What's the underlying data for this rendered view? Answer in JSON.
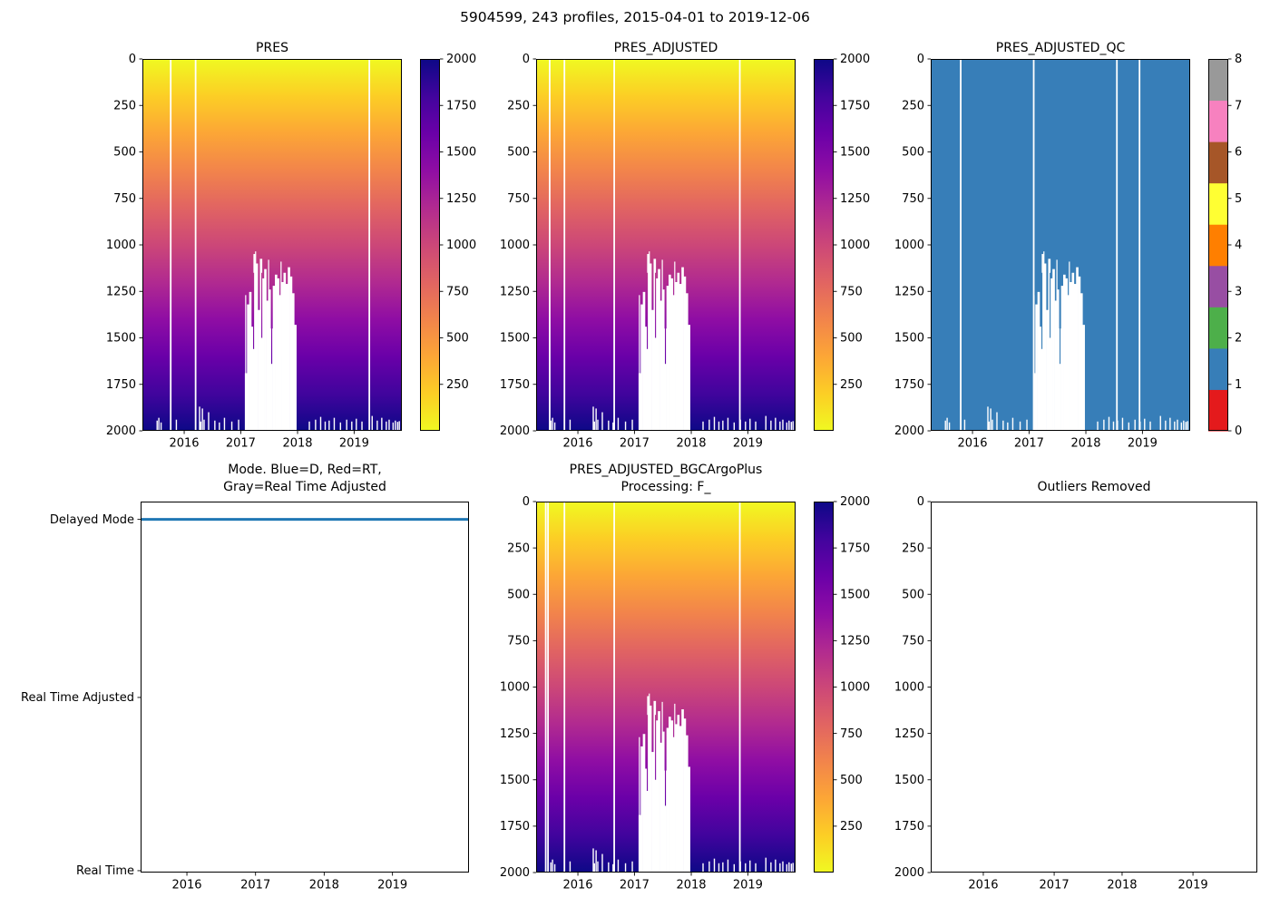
{
  "suptitle": "5904599, 243 profiles, 2015-04-01 to 2019-12-06",
  "header": {
    "float_id": "5904599",
    "profile_count": "243",
    "date_range_start": "2015-04-01",
    "date_range_end": "2019-12-06"
  },
  "colors": {
    "background": "#ffffff",
    "axis": "#000000",
    "missing": "#ffffff",
    "qc_fill": "#377eb8",
    "mode_line": "#1f77b4",
    "plasma_top_to_bottom": [
      "#f0f921",
      "#fcce25",
      "#fca636",
      "#f2844b",
      "#e16462",
      "#cc4778",
      "#b12a90",
      "#8f0da4",
      "#6a00a8",
      "#41049d",
      "#0d0887"
    ],
    "set1_qc_0_to_8": [
      "#e41a1c",
      "#377eb8",
      "#4daf4a",
      "#984ea3",
      "#ff7f00",
      "#ffff33",
      "#a65628",
      "#f781bf",
      "#999999"
    ]
  },
  "time_axis": {
    "start_year": 2015.27,
    "end_year": 2019.855,
    "tick_values": [
      2016,
      2017,
      2018,
      2019
    ],
    "tick_labels": [
      "2016",
      "2017",
      "2018",
      "2019"
    ]
  },
  "depth_axis": {
    "min": 0,
    "max": 2000,
    "inverted": true,
    "tick_labels": [
      "0",
      "250",
      "500",
      "750",
      "1000",
      "1250",
      "1500",
      "1750",
      "2000"
    ]
  },
  "pressure_colorbar": {
    "vmin": 0,
    "vmax": 2000,
    "tick_values": [
      2000,
      1750,
      1500,
      1250,
      1000,
      750,
      500,
      250
    ],
    "tick_labels": [
      "2000",
      "1750",
      "1500",
      "1250",
      "1000",
      "750",
      "500",
      "250"
    ]
  },
  "qc_colorbar": {
    "range": [
      0,
      8
    ],
    "n_colors": 9,
    "tick_values": [
      8,
      7,
      6,
      5,
      4,
      3,
      2,
      1,
      0
    ],
    "tick_labels": [
      "8",
      "7",
      "6",
      "5",
      "4",
      "3",
      "2",
      "1",
      "0"
    ]
  },
  "missing_pattern": {
    "note": "white = missing data; deep block of missing values between 2017.08 and 2018.0 below ~1050-1700 dbar; scattered shallow notches near bottom",
    "deep_block": {
      "x_start": 2017.08,
      "x_end": 2017.99,
      "column_top_depths": [
        1690,
        1320,
        1253,
        1440,
        1049,
        1100,
        1350,
        1075,
        1180,
        1130,
        1300,
        1240,
        1450,
        1220,
        1160,
        1180,
        1270,
        1200,
        1150,
        1210,
        1120,
        1170,
        1260,
        1430
      ]
    },
    "spikes": [
      [
        2017.095,
        1270
      ],
      [
        2017.27,
        1035
      ],
      [
        2017.5,
        1080
      ],
      [
        2017.72,
        1090
      ],
      [
        2017.93,
        1390
      ]
    ],
    "slits": [
      [
        2017.235,
        1560
      ],
      [
        2017.38,
        1500
      ],
      [
        2017.555,
        1640
      ]
    ],
    "bottom_marks": [
      [
        2015.53,
        1945
      ],
      [
        2015.56,
        1930
      ],
      [
        2015.6,
        1955
      ],
      [
        2015.87,
        1940
      ],
      [
        2016.28,
        1870
      ],
      [
        2016.3,
        1950
      ],
      [
        2016.33,
        1880
      ],
      [
        2016.36,
        1940
      ],
      [
        2016.44,
        1900
      ],
      [
        2016.55,
        1945
      ],
      [
        2016.63,
        1955
      ],
      [
        2016.72,
        1930
      ],
      [
        2016.85,
        1950
      ],
      [
        2016.97,
        1940
      ],
      [
        2018.22,
        1950
      ],
      [
        2018.33,
        1940
      ],
      [
        2018.42,
        1925
      ],
      [
        2018.5,
        1950
      ],
      [
        2018.57,
        1945
      ],
      [
        2018.66,
        1930
      ],
      [
        2018.77,
        1955
      ],
      [
        2018.88,
        1940
      ],
      [
        2018.97,
        1950
      ],
      [
        2019.05,
        1935
      ],
      [
        2019.15,
        1950
      ],
      [
        2019.33,
        1920
      ],
      [
        2019.42,
        1945
      ],
      [
        2019.5,
        1930
      ],
      [
        2019.58,
        1950
      ],
      [
        2019.63,
        1940
      ],
      [
        2019.7,
        1955
      ],
      [
        2019.74,
        1945
      ],
      [
        2019.78,
        1952
      ],
      [
        2019.81,
        1948
      ]
    ]
  },
  "chart_data": [
    {
      "type": "heatmap",
      "title": "PRES",
      "colormap": "plasma_reversed",
      "cell_value": "pressure (dbar), equal to depth-axis value, 0 at surface to 2000 at bottom",
      "x_range": [
        2015.27,
        2019.855
      ],
      "y_range": [
        0,
        2000
      ],
      "y_inverted": true,
      "x_ticks": [
        2016,
        2017,
        2018,
        2019
      ],
      "y_ticks": [
        0,
        250,
        500,
        750,
        1000,
        1250,
        1500,
        1750,
        2000
      ],
      "colorbar_ticks": [
        2000,
        1750,
        1500,
        1250,
        1000,
        750,
        500,
        250
      ],
      "gap_years": [
        2015.77,
        2016.21,
        2019.28
      ],
      "uses_missing_pattern": true
    },
    {
      "type": "heatmap",
      "title": "PRES_ADJUSTED",
      "colormap": "plasma_reversed",
      "cell_value": "adjusted pressure (dbar), equal to depth-axis value",
      "x_range": [
        2015.27,
        2019.855
      ],
      "y_range": [
        0,
        2000
      ],
      "y_inverted": true,
      "x_ticks": [
        2016,
        2017,
        2018,
        2019
      ],
      "y_ticks": [
        0,
        250,
        500,
        750,
        1000,
        1250,
        1500,
        1750,
        2000
      ],
      "colorbar_ticks": [
        2000,
        1750,
        1500,
        1250,
        1000,
        750,
        500,
        250
      ],
      "gap_years": [
        2015.51,
        2015.77,
        2016.65,
        2018.87
      ],
      "uses_missing_pattern": true
    },
    {
      "type": "heatmap",
      "title": "PRES_ADJUSTED_QC",
      "colormap": "Set1 discrete 0-8",
      "cell_value": "QC flag = 1 (good data) everywhere data exists",
      "constant_value": 1,
      "fill_color": "#377eb8",
      "x_range": [
        2015.27,
        2019.855
      ],
      "y_range": [
        0,
        2000
      ],
      "y_inverted": true,
      "x_ticks": [
        2016,
        2017,
        2018,
        2019
      ],
      "y_ticks": [
        0,
        250,
        500,
        750,
        1000,
        1250,
        1500,
        1750,
        2000
      ],
      "colorbar_ticks": [
        8,
        7,
        6,
        5,
        4,
        3,
        2,
        1,
        0
      ],
      "gap_years": [
        2015.8,
        2017.09,
        2018.56,
        2018.96
      ],
      "uses_missing_pattern": true
    },
    {
      "type": "line",
      "title_lines": [
        "Mode. Blue=D, Red=RT,",
        "Gray=Real Time Adjusted"
      ],
      "y_categories_bottom_to_top": [
        "Real Time",
        "Real Time Adjusted",
        "Delayed Mode"
      ],
      "y_tick_labels_top_to_bottom": [
        "Delayed Mode",
        "Real Time Adjusted",
        "Real Time"
      ],
      "series": [
        {
          "name": "processing mode",
          "constant_value": "Delayed Mode",
          "x_start": 2015.3,
          "x_end": 2019.93,
          "color": "#1f77b4"
        }
      ],
      "x_ticks": [
        2016,
        2017,
        2018,
        2019
      ]
    },
    {
      "type": "heatmap",
      "title_lines": [
        "PRES_ADJUSTED_BGCArgoPlus",
        "Processing: F_"
      ],
      "colormap": "plasma_reversed",
      "cell_value": "adjusted pressure (dbar), equal to depth-axis value",
      "x_range": [
        2015.27,
        2019.855
      ],
      "y_range": [
        0,
        2000
      ],
      "y_inverted": true,
      "x_ticks": [
        2016,
        2017,
        2018,
        2019
      ],
      "y_ticks": [
        0,
        250,
        500,
        750,
        1000,
        1250,
        1500,
        1750,
        2000
      ],
      "colorbar_ticks": [
        2000,
        1750,
        1500,
        1250,
        1000,
        750,
        500,
        250
      ],
      "gap_years": [
        2015.44,
        2015.48,
        2015.77,
        2016.65,
        2018.87
      ],
      "uses_missing_pattern": true
    },
    {
      "type": "empty",
      "title": "Outliers Removed",
      "x_range": [
        2015.27,
        2019.855
      ],
      "y_range": [
        0,
        2000
      ],
      "y_inverted": true,
      "x_ticks": [
        2016,
        2017,
        2018,
        2019
      ],
      "y_ticks": [
        0,
        250,
        500,
        750,
        1000,
        1250,
        1500,
        1750,
        2000
      ],
      "data_points": []
    }
  ]
}
